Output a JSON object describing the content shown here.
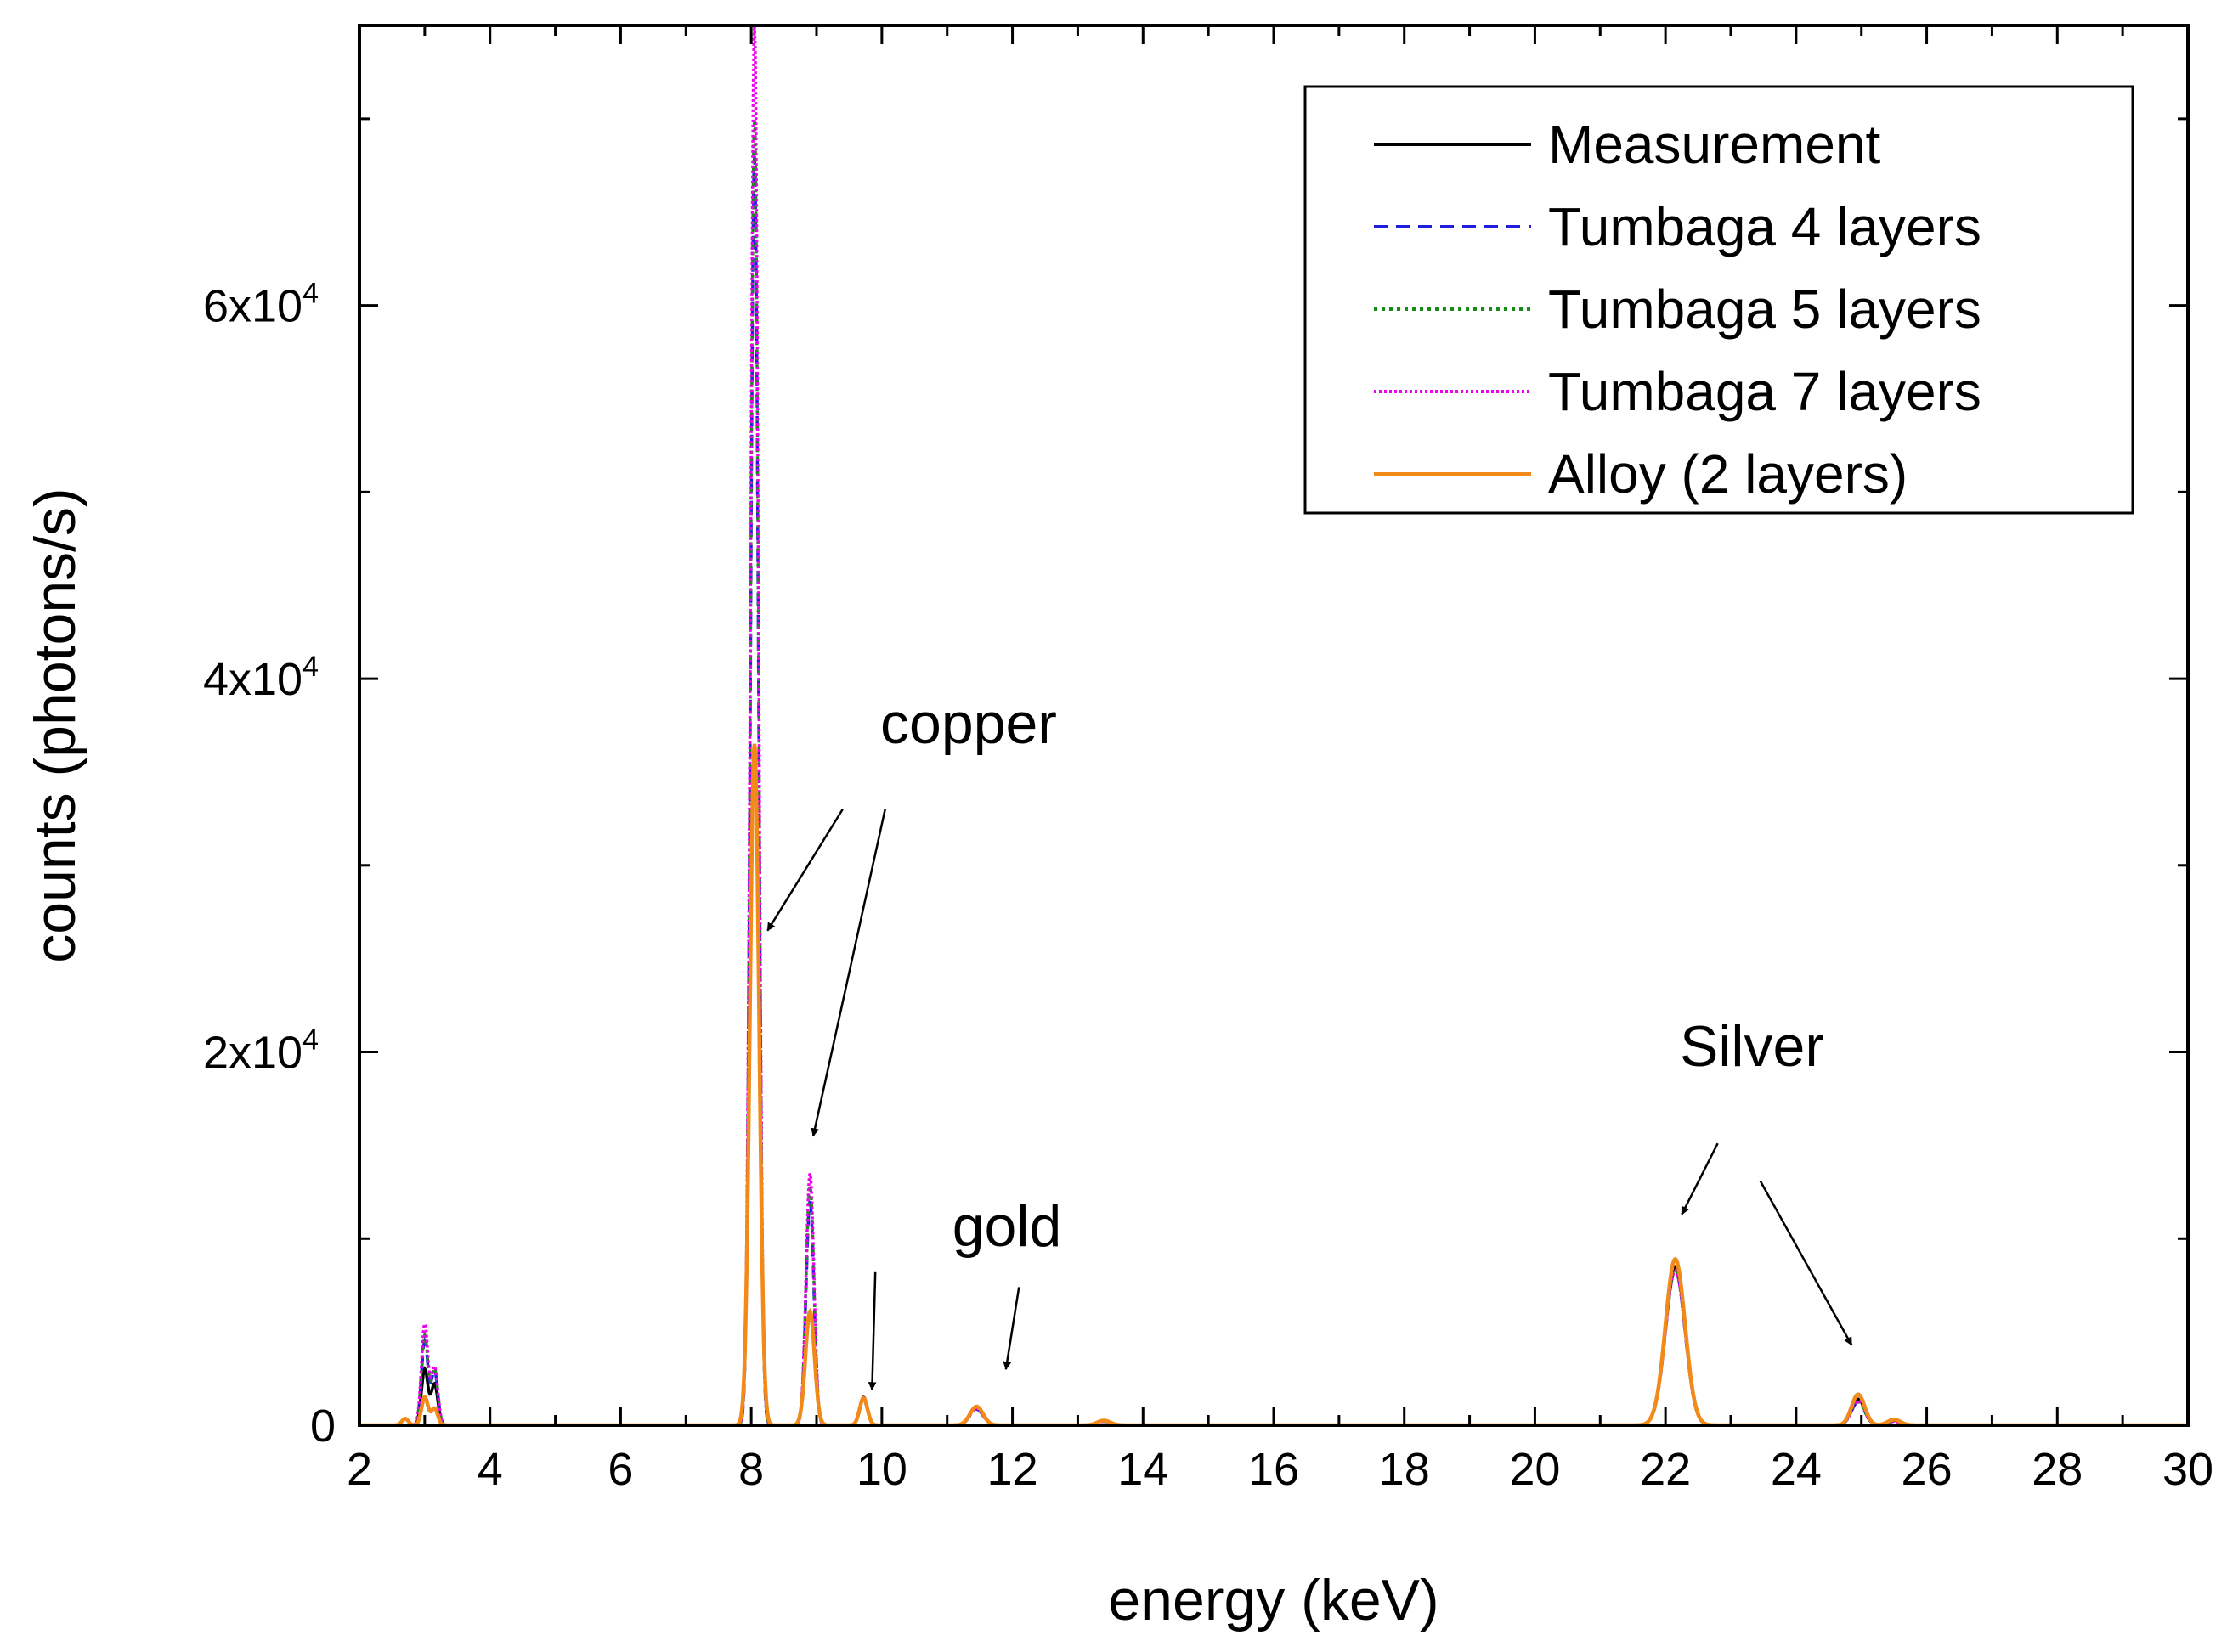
{
  "chart_data": {
    "type": "line",
    "xlabel": "energy (keV)",
    "ylabel": "counts (photons/s)",
    "xlim": [
      2,
      30
    ],
    "ylim": [
      0,
      75000
    ],
    "xticks": [
      2,
      4,
      6,
      8,
      10,
      12,
      14,
      16,
      18,
      20,
      22,
      24,
      26,
      28,
      30
    ],
    "yticks": [
      {
        "value": 0,
        "base": "0",
        "exp": ""
      },
      {
        "value": 20000,
        "base": "2x10",
        "exp": "4"
      },
      {
        "value": 40000,
        "base": "4x10",
        "exp": "4"
      },
      {
        "value": 60000,
        "base": "6x10",
        "exp": "4"
      }
    ],
    "legend_position": "top-right",
    "series": [
      {
        "name": "Measurement",
        "color": "#000000",
        "style": "solid",
        "peaks": [
          [
            3.0,
            3000,
            0.05
          ],
          [
            3.15,
            2200,
            0.05
          ],
          [
            8.05,
            36500,
            0.07
          ],
          [
            8.9,
            6000,
            0.07
          ],
          [
            9.72,
            1500,
            0.06
          ],
          [
            11.45,
            950,
            0.1
          ],
          [
            13.4,
            250,
            0.1
          ],
          [
            22.15,
            8500,
            0.15
          ],
          [
            24.95,
            1400,
            0.1
          ],
          [
            25.5,
            250,
            0.1
          ]
        ]
      },
      {
        "name": "Tumbaga 4 layers",
        "color": "#1f1fdc",
        "style": "dashed",
        "peaks": [
          [
            3.0,
            4500,
            0.05
          ],
          [
            3.15,
            2900,
            0.05
          ],
          [
            8.05,
            68000,
            0.06
          ],
          [
            8.9,
            12000,
            0.06
          ],
          [
            9.72,
            1350,
            0.06
          ],
          [
            11.45,
            850,
            0.1
          ],
          [
            13.4,
            200,
            0.1
          ],
          [
            22.15,
            8300,
            0.15
          ],
          [
            24.95,
            1250,
            0.1
          ],
          [
            25.5,
            200,
            0.1
          ]
        ]
      },
      {
        "name": "Tumbaga 5 layers",
        "color": "#1a8a1a",
        "style": "dotted",
        "peaks": [
          [
            3.0,
            4800,
            0.05
          ],
          [
            3.15,
            3000,
            0.05
          ],
          [
            8.05,
            70000,
            0.06
          ],
          [
            8.9,
            12800,
            0.06
          ],
          [
            9.72,
            1400,
            0.06
          ],
          [
            11.45,
            880,
            0.1
          ],
          [
            13.4,
            200,
            0.1
          ],
          [
            22.15,
            8300,
            0.15
          ],
          [
            24.95,
            1250,
            0.1
          ],
          [
            25.5,
            200,
            0.1
          ]
        ]
      },
      {
        "name": "Tumbaga 7 layers",
        "color": "#ee00ee",
        "style": "dotted-fine",
        "peaks": [
          [
            3.0,
            5400,
            0.05
          ],
          [
            3.15,
            3100,
            0.05
          ],
          [
            8.05,
            75000,
            0.06
          ],
          [
            8.9,
            13500,
            0.06
          ],
          [
            9.72,
            1500,
            0.06
          ],
          [
            11.45,
            900,
            0.1
          ],
          [
            13.4,
            200,
            0.1
          ],
          [
            22.15,
            8300,
            0.15
          ],
          [
            24.95,
            1300,
            0.1
          ],
          [
            25.5,
            200,
            0.1
          ]
        ]
      },
      {
        "name": "Alloy (2 layers)",
        "color": "#f28a1a",
        "style": "solid",
        "peaks": [
          [
            2.7,
            350,
            0.05
          ],
          [
            3.0,
            1500,
            0.05
          ],
          [
            3.15,
            900,
            0.05
          ],
          [
            8.05,
            36500,
            0.07
          ],
          [
            8.9,
            6100,
            0.07
          ],
          [
            9.72,
            1450,
            0.06
          ],
          [
            11.45,
            1000,
            0.1
          ],
          [
            13.4,
            250,
            0.1
          ],
          [
            22.15,
            8900,
            0.15
          ],
          [
            24.95,
            1650,
            0.1
          ],
          [
            25.5,
            300,
            0.1
          ]
        ]
      }
    ],
    "annotations": [
      {
        "text": "copper",
        "arrows": [
          {
            "from": [
              9.4,
              33000
            ],
            "to": [
              8.25,
              26500
            ]
          },
          {
            "from": [
              10.05,
              33000
            ],
            "to": [
              8.95,
              15500
            ]
          }
        ]
      },
      {
        "text": "gold",
        "arrows": [
          {
            "from": [
              9.9,
              8200
            ],
            "to": [
              9.85,
              1900
            ]
          },
          {
            "from": [
              12.1,
              7400
            ],
            "to": [
              11.9,
              3000
            ]
          }
        ]
      },
      {
        "text": "Silver",
        "arrows": [
          {
            "from": [
              22.8,
              15100
            ],
            "to": [
              22.25,
              11300
            ]
          },
          {
            "from": [
              23.45,
              13100
            ],
            "to": [
              24.85,
              4300
            ]
          }
        ]
      }
    ]
  }
}
